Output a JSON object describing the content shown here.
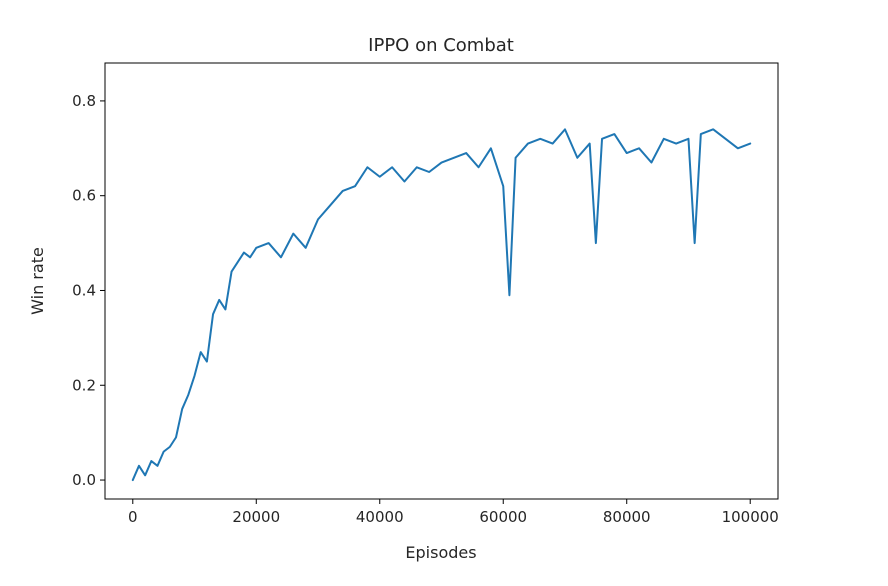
{
  "chart_data": {
    "type": "line",
    "title": "IPPO on Combat",
    "xlabel": "Episodes",
    "ylabel": "Win rate",
    "xlim": [
      -4500,
      104500
    ],
    "ylim": [
      -0.04,
      0.88
    ],
    "xticks": [
      0,
      20000,
      40000,
      60000,
      80000,
      100000
    ],
    "xtick_labels": [
      "0",
      "20000",
      "40000",
      "60000",
      "80000",
      "100000"
    ],
    "yticks": [
      0.0,
      0.2,
      0.4,
      0.6,
      0.8
    ],
    "ytick_labels": [
      "0.0",
      "0.2",
      "0.4",
      "0.6",
      "0.8"
    ],
    "grid": false,
    "colors": {
      "series": "#1f77b4",
      "axes": "#000000",
      "text": "#262626"
    },
    "series": [
      {
        "x": [
          0,
          1000,
          2000,
          3000,
          4000,
          5000,
          6000,
          7000,
          8000,
          9000,
          10000,
          11000,
          12000,
          13000,
          14000,
          15000,
          16000,
          17000,
          18000,
          19000,
          20000,
          22000,
          24000,
          26000,
          28000,
          30000,
          32000,
          34000,
          36000,
          38000,
          40000,
          42000,
          44000,
          46000,
          48000,
          50000,
          52000,
          54000,
          56000,
          58000,
          60000,
          61000,
          62000,
          64000,
          66000,
          68000,
          70000,
          72000,
          74000,
          75000,
          76000,
          78000,
          80000,
          82000,
          84000,
          86000,
          88000,
          90000,
          91000,
          92000,
          94000,
          96000,
          98000,
          100000
        ],
        "y": [
          0.0,
          0.03,
          0.01,
          0.04,
          0.03,
          0.06,
          0.07,
          0.09,
          0.15,
          0.18,
          0.22,
          0.27,
          0.25,
          0.35,
          0.38,
          0.36,
          0.44,
          0.46,
          0.48,
          0.47,
          0.49,
          0.5,
          0.47,
          0.52,
          0.49,
          0.55,
          0.58,
          0.61,
          0.62,
          0.66,
          0.64,
          0.66,
          0.63,
          0.66,
          0.65,
          0.67,
          0.68,
          0.69,
          0.66,
          0.7,
          0.62,
          0.39,
          0.68,
          0.71,
          0.72,
          0.71,
          0.74,
          0.68,
          0.71,
          0.5,
          0.72,
          0.73,
          0.69,
          0.7,
          0.67,
          0.72,
          0.71,
          0.72,
          0.5,
          0.73,
          0.74,
          0.72,
          0.7,
          0.71
        ]
      }
    ]
  }
}
